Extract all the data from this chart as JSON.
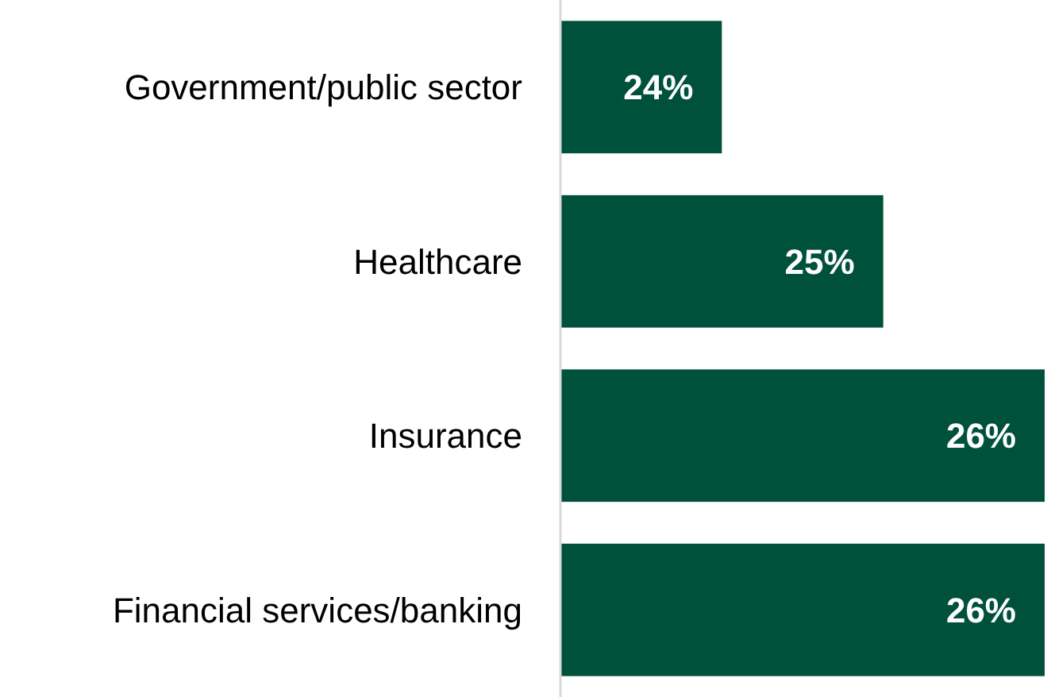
{
  "chart_data": {
    "type": "bar",
    "orientation": "horizontal",
    "categories": [
      "Government/public sector",
      "Healthcare",
      "Insurance",
      "Financial services/banking"
    ],
    "values": [
      24,
      25,
      26,
      26
    ],
    "value_labels": [
      "24%",
      "25%",
      "26%",
      "26%"
    ],
    "color": "#00513b",
    "xlim": [
      23,
      26
    ],
    "tick_labels": "y"
  }
}
